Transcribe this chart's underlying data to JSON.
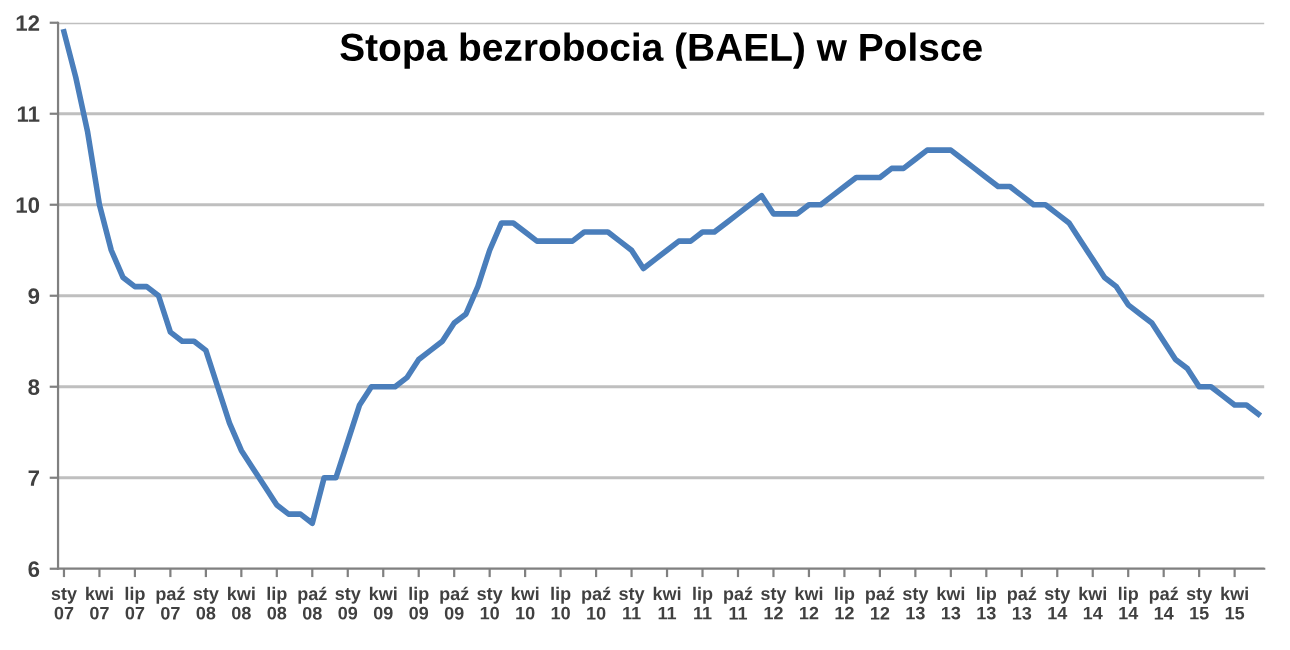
{
  "chart_data": {
    "type": "line",
    "title": "Stopa bezrobocia (BAEL) w Polsce",
    "categories": [
      "sty\n07",
      null,
      null,
      "kwi\n07",
      null,
      null,
      "lip\n07",
      null,
      null,
      "paź\n07",
      null,
      null,
      "sty\n08",
      null,
      null,
      "kwi\n08",
      null,
      null,
      "lip\n08",
      null,
      null,
      "paź\n08",
      null,
      null,
      "sty\n09",
      null,
      null,
      "kwi\n09",
      null,
      null,
      "lip\n09",
      null,
      null,
      "paź\n09",
      null,
      null,
      "sty\n10",
      null,
      null,
      "kwi\n10",
      null,
      null,
      "lip\n10",
      null,
      null,
      "paź\n10",
      null,
      null,
      "sty\n11",
      null,
      null,
      "kwi\n11",
      null,
      null,
      "lip\n11",
      null,
      null,
      "paź\n11",
      null,
      null,
      "sty\n12",
      null,
      null,
      "kwi\n12",
      null,
      null,
      "lip\n12",
      null,
      null,
      "paź\n12",
      null,
      null,
      "sty\n13",
      null,
      null,
      "kwi\n13",
      null,
      null,
      "lip\n13",
      null,
      null,
      "paź\n13",
      null,
      null,
      "sty\n14",
      null,
      null,
      "kwi\n14",
      null,
      null,
      "lip\n14",
      null,
      null,
      "paź\n14",
      null,
      null,
      "sty\n15",
      null,
      null,
      "kwi\n15",
      null,
      null
    ],
    "series": [
      {
        "color": "#4a7ebb",
        "values": [
          11.9,
          11.4,
          10.8,
          10.0,
          9.5,
          9.2,
          9.1,
          9.1,
          9.0,
          8.6,
          8.5,
          8.5,
          8.4,
          8.0,
          7.6,
          7.3,
          7.1,
          6.9,
          6.7,
          6.6,
          6.6,
          6.5,
          7.0,
          7.0,
          7.4,
          7.8,
          8.0,
          8.0,
          8.0,
          8.1,
          8.3,
          8.4,
          8.5,
          8.7,
          8.8,
          9.1,
          9.5,
          9.8,
          9.8,
          9.7,
          9.6,
          9.6,
          9.6,
          9.6,
          9.7,
          9.7,
          9.7,
          9.6,
          9.5,
          9.3,
          9.4,
          9.5,
          9.6,
          9.6,
          9.7,
          9.7,
          9.8,
          9.9,
          10.0,
          10.1,
          9.9,
          9.9,
          9.9,
          10.0,
          10.0,
          10.1,
          10.2,
          10.3,
          10.3,
          10.3,
          10.4,
          10.4,
          10.5,
          10.6,
          10.6,
          10.6,
          10.5,
          10.4,
          10.3,
          10.2,
          10.2,
          10.1,
          10.0,
          10.0,
          9.9,
          9.8,
          9.6,
          9.4,
          9.2,
          9.1,
          8.9,
          8.8,
          8.7,
          8.5,
          8.3,
          8.2,
          8.0,
          8.0,
          7.9,
          7.8,
          7.8,
          7.7
        ]
      }
    ],
    "ylim": [
      6,
      12
    ],
    "yticks": [
      6,
      7,
      8,
      9,
      10,
      11,
      12
    ],
    "grid": "y",
    "marker": "none",
    "line_style": "solid"
  }
}
